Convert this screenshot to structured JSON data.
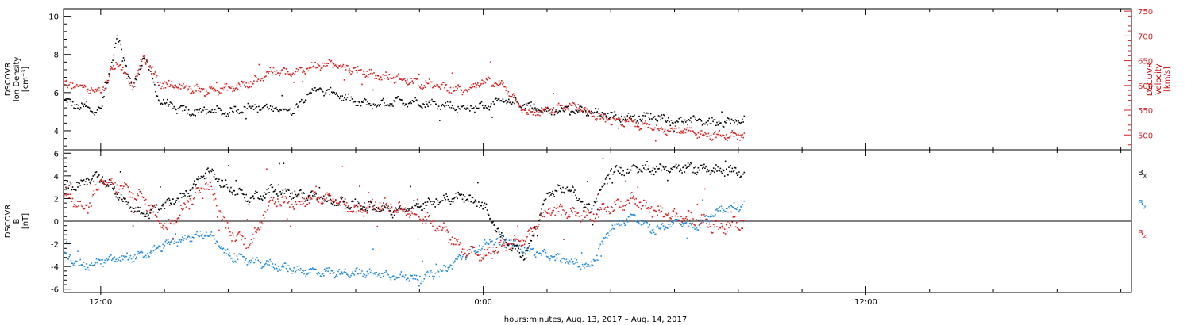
{
  "colors": {
    "black": "#000000",
    "red": "#d62020",
    "blue": "#2288dd"
  },
  "xlabel": "hours:minutes, Aug. 13, 2017 – Aug. 14, 2017",
  "chart_data": [
    {
      "type": "scatter",
      "panel": "plasma",
      "xlim": [
        "2017-08-13T10:50",
        "2017-08-14T20:20"
      ],
      "x_ticks": [
        "12:00",
        "0:00",
        "12:00"
      ],
      "y_left": {
        "label_lines": [
          "DSCOVR",
          "Ion Density"
        ],
        "unit": "[cm⁻³]",
        "lim": [
          3,
          10.4
        ],
        "ticks": [
          4,
          6,
          8,
          10
        ]
      },
      "y_right": {
        "label_lines": [
          "DSCOVR",
          "Velocity"
        ],
        "unit": "[km/s]",
        "lim": [
          470,
          755
        ],
        "ticks": [
          500,
          550,
          600,
          650,
          700,
          750
        ]
      },
      "data_end": "2017-08-14T08:10",
      "series": [
        {
          "axis": "left",
          "color": "black",
          "x": [
            "2017-08-13T10:50",
            "2017-08-13T11:30",
            "2017-08-13T12:00",
            "2017-08-13T12:30",
            "2017-08-13T13:00",
            "2017-08-13T13:20",
            "2017-08-13T13:50",
            "2017-08-13T14:20",
            "2017-08-13T14:50",
            "2017-08-13T15:20",
            "2017-08-13T16:00",
            "2017-08-13T16:40",
            "2017-08-13T17:20",
            "2017-08-13T18:00",
            "2017-08-13T18:40",
            "2017-08-13T19:20",
            "2017-08-13T20:00",
            "2017-08-13T20:40",
            "2017-08-13T21:20",
            "2017-08-13T22:00",
            "2017-08-13T22:40",
            "2017-08-13T23:20",
            "2017-08-14T00:00",
            "2017-08-14T00:40",
            "2017-08-14T01:20",
            "2017-08-14T02:00",
            "2017-08-14T02:40",
            "2017-08-14T03:20",
            "2017-08-14T04:00",
            "2017-08-14T04:40",
            "2017-08-14T05:20",
            "2017-08-14T06:00",
            "2017-08-14T06:40",
            "2017-08-14T07:20",
            "2017-08-14T08:10"
          ],
          "y": [
            5.6,
            5.2,
            5.1,
            9.0,
            6.2,
            8.0,
            5.6,
            5.2,
            5.0,
            5.1,
            5.0,
            5.3,
            5.2,
            5.1,
            6.2,
            6.0,
            5.5,
            5.4,
            5.6,
            5.5,
            5.4,
            5.2,
            5.3,
            5.6,
            5.4,
            5.0,
            5.1,
            5.0,
            4.8,
            4.7,
            4.8,
            4.5,
            4.6,
            4.4,
            4.6
          ]
        },
        {
          "axis": "right",
          "color": "red",
          "x": [
            "2017-08-13T10:50",
            "2017-08-13T11:30",
            "2017-08-13T12:00",
            "2017-08-13T12:30",
            "2017-08-13T13:00",
            "2017-08-13T13:20",
            "2017-08-13T13:50",
            "2017-08-13T14:20",
            "2017-08-13T14:50",
            "2017-08-13T15:20",
            "2017-08-13T16:00",
            "2017-08-13T16:40",
            "2017-08-13T17:20",
            "2017-08-13T18:00",
            "2017-08-13T18:40",
            "2017-08-13T19:20",
            "2017-08-13T20:00",
            "2017-08-13T20:40",
            "2017-08-13T21:20",
            "2017-08-13T22:00",
            "2017-08-13T22:40",
            "2017-08-13T23:20",
            "2017-08-14T00:00",
            "2017-08-14T00:40",
            "2017-08-14T01:20",
            "2017-08-14T02:00",
            "2017-08-14T02:40",
            "2017-08-14T03:20",
            "2017-08-14T04:00",
            "2017-08-14T04:40",
            "2017-08-14T05:20",
            "2017-08-14T06:00",
            "2017-08-14T06:40",
            "2017-08-14T07:20",
            "2017-08-14T08:10"
          ],
          "y": [
            605,
            595,
            590,
            650,
            600,
            660,
            605,
            600,
            595,
            590,
            595,
            605,
            630,
            625,
            640,
            645,
            630,
            620,
            615,
            605,
            600,
            590,
            610,
            600,
            545,
            550,
            560,
            545,
            530,
            525,
            515,
            510,
            505,
            500,
            500
          ]
        }
      ]
    },
    {
      "type": "scatter",
      "panel": "magnetic field",
      "xlim": [
        "2017-08-13T10:50",
        "2017-08-14T20:20"
      ],
      "x_ticks": [
        "12:00",
        "0:00",
        "12:00"
      ],
      "y_left": {
        "label_lines": [
          "DSCOVR",
          "B"
        ],
        "unit": "[nT]",
        "lim": [
          -6.3,
          6.3
        ],
        "ticks": [
          -6,
          -4,
          -2,
          0,
          2,
          4,
          6
        ]
      },
      "zero_line": 0,
      "data_end": "2017-08-14T08:10",
      "series": [
        {
          "name": "Bx",
          "color": "black",
          "x": [
            "2017-08-13T10:50",
            "2017-08-13T11:30",
            "2017-08-13T12:00",
            "2017-08-13T12:40",
            "2017-08-13T13:20",
            "2017-08-13T14:00",
            "2017-08-13T14:40",
            "2017-08-13T15:20",
            "2017-08-13T16:00",
            "2017-08-13T16:40",
            "2017-08-13T17:20",
            "2017-08-13T18:00",
            "2017-08-13T18:40",
            "2017-08-13T19:20",
            "2017-08-13T20:00",
            "2017-08-13T20:40",
            "2017-08-13T21:20",
            "2017-08-13T22:00",
            "2017-08-13T22:40",
            "2017-08-13T23:20",
            "2017-08-14T00:00",
            "2017-08-14T00:40",
            "2017-08-14T01:20",
            "2017-08-14T02:00",
            "2017-08-14T02:40",
            "2017-08-14T03:20",
            "2017-08-14T04:00",
            "2017-08-14T04:40",
            "2017-08-14T05:20",
            "2017-08-14T06:00",
            "2017-08-14T06:40",
            "2017-08-14T07:20",
            "2017-08-14T08:10"
          ],
          "y": [
            3.0,
            3.5,
            4.0,
            2.0,
            0.5,
            1.5,
            2.5,
            4.5,
            3.0,
            2.0,
            2.8,
            2.5,
            2.2,
            1.8,
            1.5,
            1.2,
            1.0,
            1.5,
            2.0,
            2.2,
            1.5,
            -2.0,
            -3.0,
            2.5,
            3.0,
            1.0,
            4.5,
            4.6,
            4.7,
            4.8,
            4.7,
            4.6,
            4.4
          ]
        },
        {
          "name": "By",
          "color": "blue",
          "x": [
            "2017-08-13T10:50",
            "2017-08-13T11:30",
            "2017-08-13T12:00",
            "2017-08-13T12:40",
            "2017-08-13T13:20",
            "2017-08-13T14:00",
            "2017-08-13T14:40",
            "2017-08-13T15:20",
            "2017-08-13T16:00",
            "2017-08-13T16:40",
            "2017-08-13T17:20",
            "2017-08-13T18:00",
            "2017-08-13T18:40",
            "2017-08-13T19:20",
            "2017-08-13T20:00",
            "2017-08-13T20:40",
            "2017-08-13T21:20",
            "2017-08-13T22:00",
            "2017-08-13T22:40",
            "2017-08-13T23:20",
            "2017-08-14T00:00",
            "2017-08-14T00:40",
            "2017-08-14T01:20",
            "2017-08-14T02:00",
            "2017-08-14T02:40",
            "2017-08-14T03:20",
            "2017-08-14T04:00",
            "2017-08-14T04:40",
            "2017-08-14T05:20",
            "2017-08-14T06:00",
            "2017-08-14T06:40",
            "2017-08-14T07:20",
            "2017-08-14T08:10"
          ],
          "y": [
            -3.0,
            -4.0,
            -3.5,
            -3.2,
            -3.0,
            -2.0,
            -1.5,
            -1.0,
            -3.0,
            -3.5,
            -3.8,
            -4.2,
            -4.4,
            -4.5,
            -4.5,
            -4.6,
            -4.8,
            -5.0,
            -4.5,
            -3.0,
            -2.0,
            -1.5,
            -2.5,
            -3.0,
            -3.5,
            -4.0,
            -0.5,
            0.5,
            -0.8,
            0.0,
            -0.5,
            1.0,
            1.5
          ]
        },
        {
          "name": "Bz",
          "color": "red",
          "x": [
            "2017-08-13T10:50",
            "2017-08-13T11:30",
            "2017-08-13T12:00",
            "2017-08-13T12:40",
            "2017-08-13T13:20",
            "2017-08-13T14:00",
            "2017-08-13T14:40",
            "2017-08-13T15:20",
            "2017-08-13T16:00",
            "2017-08-13T16:40",
            "2017-08-13T17:20",
            "2017-08-13T18:00",
            "2017-08-13T18:40",
            "2017-08-13T19:20",
            "2017-08-13T20:00",
            "2017-08-13T20:40",
            "2017-08-13T21:20",
            "2017-08-13T22:00",
            "2017-08-13T22:40",
            "2017-08-13T23:20",
            "2017-08-14T00:00",
            "2017-08-14T00:40",
            "2017-08-14T01:20",
            "2017-08-14T02:00",
            "2017-08-14T02:40",
            "2017-08-14T03:20",
            "2017-08-14T04:00",
            "2017-08-14T04:40",
            "2017-08-14T05:20",
            "2017-08-14T06:00",
            "2017-08-14T06:40",
            "2017-08-14T07:20",
            "2017-08-14T08:10"
          ],
          "y": [
            2.5,
            1.0,
            3.5,
            3.0,
            2.0,
            -0.5,
            1.5,
            3.5,
            -1.0,
            -2.0,
            2.0,
            1.5,
            2.2,
            1.8,
            1.0,
            1.5,
            1.2,
            0.5,
            -0.5,
            -2.5,
            -3.0,
            -2.0,
            -1.5,
            1.0,
            0.8,
            0.5,
            1.2,
            2.0,
            1.0,
            0.5,
            0.2,
            -0.5,
            0.0
          ]
        }
      ],
      "legend": [
        {
          "label": "B",
          "sub": "x",
          "color": "black"
        },
        {
          "label": "B",
          "sub": "y",
          "color": "blue"
        },
        {
          "label": "B",
          "sub": "z",
          "color": "red"
        }
      ]
    }
  ]
}
